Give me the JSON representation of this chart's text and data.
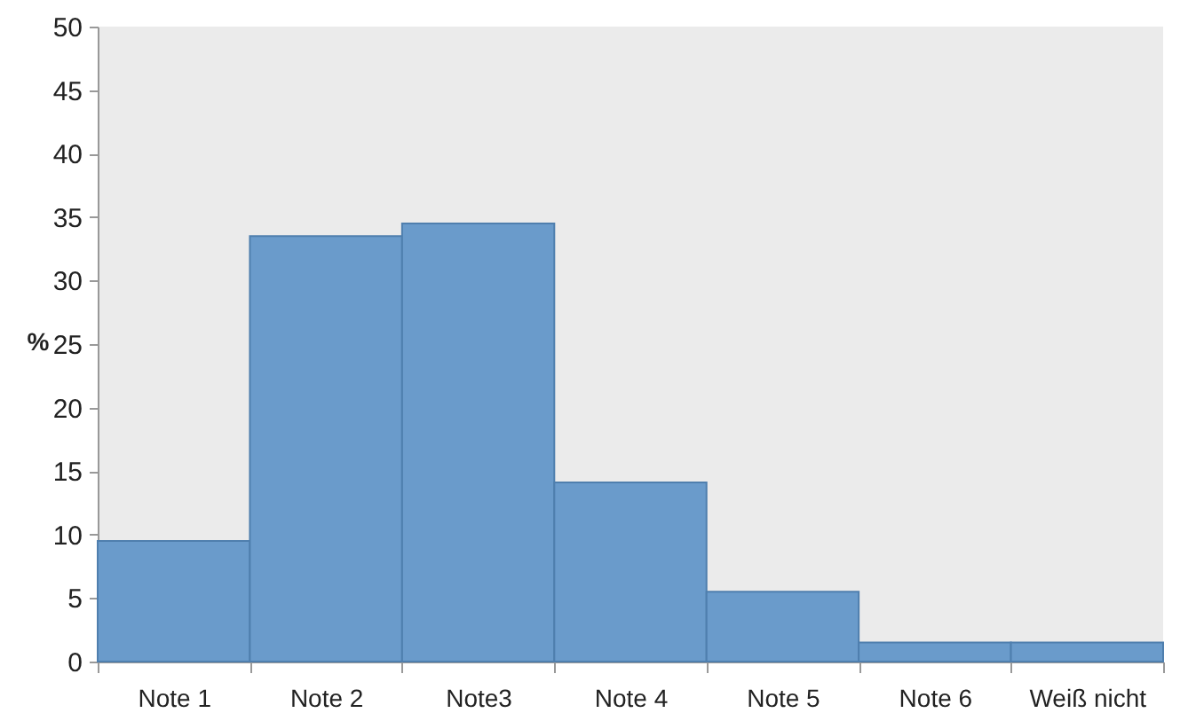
{
  "chart_data": {
    "type": "bar",
    "ylabel": "%",
    "categories": [
      "Note 1",
      "Note 2",
      "Note3",
      "Note 4",
      "Note 5",
      "Note 6",
      "Weiß nicht"
    ],
    "values": [
      9.5,
      33.5,
      34.5,
      14.1,
      5.5,
      1.5,
      1.5
    ],
    "color": "#6a9bcb",
    "ylim": [
      0,
      50
    ],
    "yticks": [
      0,
      5,
      10,
      15,
      20,
      25,
      30,
      35,
      40,
      45,
      50
    ],
    "grid": false
  }
}
